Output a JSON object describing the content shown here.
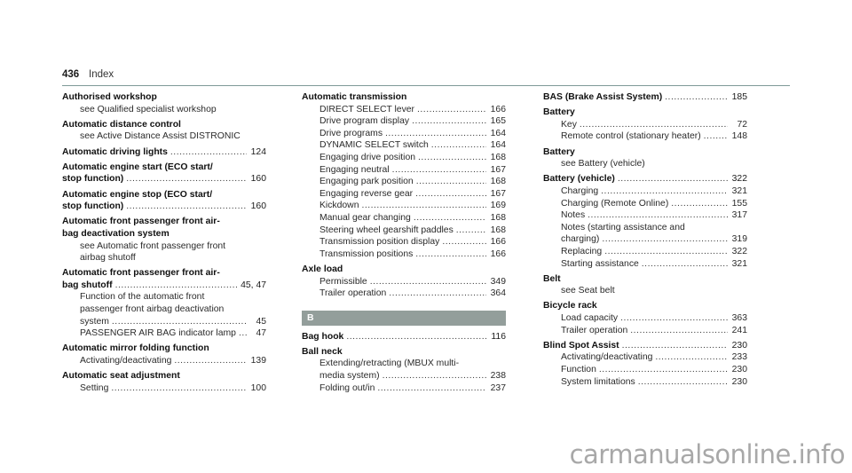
{
  "header": {
    "page_number": "436",
    "title": "Index",
    "rule_color": "#7f9a98"
  },
  "columns": [
    {
      "entries": [
        {
          "lines": [
            {
              "text": "Authorised workshop",
              "style": "bold",
              "page": ""
            },
            {
              "text": "see Qualified specialist workshop",
              "style": "sub-plain",
              "page": ""
            }
          ]
        },
        {
          "lines": [
            {
              "text": "Automatic distance control",
              "style": "bold",
              "page": ""
            },
            {
              "text": "see Active Distance Assist DISTRONIC",
              "style": "sub-plain",
              "page": ""
            }
          ]
        },
        {
          "lines": [
            {
              "text": "Automatic driving lights",
              "style": "bold-dots",
              "page": "124"
            }
          ]
        },
        {
          "lines": [
            {
              "text": "Automatic engine start (ECO start/",
              "style": "bold",
              "page": ""
            },
            {
              "text": "stop function)",
              "style": "bold-dots",
              "page": "160"
            }
          ]
        },
        {
          "lines": [
            {
              "text": "Automatic engine stop (ECO start/",
              "style": "bold",
              "page": ""
            },
            {
              "text": "stop function)",
              "style": "bold-dots",
              "page": "160"
            }
          ]
        },
        {
          "lines": [
            {
              "text": "Automatic front passenger front air-",
              "style": "bold",
              "page": ""
            },
            {
              "text": "bag deactivation system",
              "style": "bold",
              "page": ""
            },
            {
              "text": "see Automatic front passenger front",
              "style": "sub-plain",
              "page": ""
            },
            {
              "text": "airbag shutoff",
              "style": "sub-plain",
              "page": ""
            }
          ]
        },
        {
          "lines": [
            {
              "text": "Automatic front passenger front air-",
              "style": "bold",
              "page": ""
            },
            {
              "text": "bag shutoff",
              "style": "bold-dots",
              "page": "45, 47"
            },
            {
              "text": "Function of the automatic front",
              "style": "sub-plain",
              "page": ""
            },
            {
              "text": "passenger front airbag deactivation",
              "style": "sub-plain",
              "page": ""
            },
            {
              "text": "system",
              "style": "sub-dots",
              "page": "45"
            },
            {
              "text": "PASSENGER AIR BAG indicator lamp",
              "style": "sub-dots",
              "page": "47"
            }
          ]
        },
        {
          "lines": [
            {
              "text": "Automatic mirror folding function",
              "style": "bold",
              "page": ""
            },
            {
              "text": "Activating/deactivating",
              "style": "sub-dots",
              "page": "139"
            }
          ]
        },
        {
          "lines": [
            {
              "text": "Automatic seat adjustment",
              "style": "bold",
              "page": ""
            },
            {
              "text": "Setting",
              "style": "sub-dots",
              "page": "100"
            }
          ]
        }
      ]
    },
    {
      "entries": [
        {
          "lines": [
            {
              "text": "Automatic transmission",
              "style": "bold",
              "page": ""
            },
            {
              "text": "DIRECT SELECT lever",
              "style": "sub-dots",
              "page": "166"
            },
            {
              "text": "Drive program display",
              "style": "sub-dots",
              "page": "165"
            },
            {
              "text": "Drive programs",
              "style": "sub-dots",
              "page": "164"
            },
            {
              "text": "DYNAMIC SELECT switch",
              "style": "sub-dots",
              "page": "164"
            },
            {
              "text": "Engaging drive position",
              "style": "sub-dots",
              "page": "168"
            },
            {
              "text": "Engaging neutral",
              "style": "sub-dots",
              "page": "167"
            },
            {
              "text": "Engaging park position",
              "style": "sub-dots",
              "page": "168"
            },
            {
              "text": "Engaging reverse gear",
              "style": "sub-dots",
              "page": "167"
            },
            {
              "text": "Kickdown",
              "style": "sub-dots",
              "page": "169"
            },
            {
              "text": "Manual gear changing",
              "style": "sub-dots",
              "page": "168"
            },
            {
              "text": "Steering wheel gearshift paddles",
              "style": "sub-dots",
              "page": "168"
            },
            {
              "text": "Transmission position display",
              "style": "sub-dots",
              "page": "166"
            },
            {
              "text": "Transmission positions",
              "style": "sub-dots",
              "page": "166"
            }
          ]
        },
        {
          "lines": [
            {
              "text": "Axle load",
              "style": "bold",
              "page": ""
            },
            {
              "text": "Permissible",
              "style": "sub-dots",
              "page": "349"
            },
            {
              "text": "Trailer operation",
              "style": "sub-dots",
              "page": "364"
            }
          ]
        },
        {
          "section": "B"
        },
        {
          "lines": [
            {
              "text": "Bag hook",
              "style": "bold-dots",
              "page": "116"
            }
          ]
        },
        {
          "lines": [
            {
              "text": "Ball neck",
              "style": "bold",
              "page": ""
            },
            {
              "text": "Extending/retracting (MBUX multi-",
              "style": "sub-plain",
              "page": ""
            },
            {
              "text": "media system)",
              "style": "sub-dots",
              "page": "238"
            },
            {
              "text": "Folding out/in",
              "style": "sub-dots",
              "page": "237"
            }
          ]
        }
      ]
    },
    {
      "entries": [
        {
          "lines": [
            {
              "text": "BAS (Brake Assist System)",
              "style": "bold-dots",
              "page": "185"
            }
          ]
        },
        {
          "lines": [
            {
              "text": "Battery",
              "style": "bold",
              "page": ""
            },
            {
              "text": "Key",
              "style": "sub-dots",
              "page": "72"
            },
            {
              "text": "Remote control (stationary heater)",
              "style": "sub-dots",
              "page": "148"
            }
          ]
        },
        {
          "lines": [
            {
              "text": "Battery",
              "style": "bold",
              "page": ""
            },
            {
              "text": "see Battery (vehicle)",
              "style": "sub-plain",
              "page": ""
            }
          ]
        },
        {
          "lines": [
            {
              "text": "Battery (vehicle)",
              "style": "bold-dots",
              "page": "322"
            },
            {
              "text": "Charging",
              "style": "sub-dots",
              "page": "321"
            },
            {
              "text": "Charging (Remote Online)",
              "style": "sub-dots",
              "page": "155"
            },
            {
              "text": "Notes",
              "style": "sub-dots",
              "page": "317"
            },
            {
              "text": "Notes (starting assistance and",
              "style": "sub-plain",
              "page": ""
            },
            {
              "text": "charging)",
              "style": "sub-dots",
              "page": "319"
            },
            {
              "text": "Replacing",
              "style": "sub-dots",
              "page": "322"
            },
            {
              "text": "Starting assistance",
              "style": "sub-dots",
              "page": "321"
            }
          ]
        },
        {
          "lines": [
            {
              "text": "Belt",
              "style": "bold",
              "page": ""
            },
            {
              "text": "see Seat belt",
              "style": "sub-plain",
              "page": ""
            }
          ]
        },
        {
          "lines": [
            {
              "text": "Bicycle rack",
              "style": "bold",
              "page": ""
            },
            {
              "text": "Load capacity",
              "style": "sub-dots",
              "page": "363"
            },
            {
              "text": "Trailer operation",
              "style": "sub-dots",
              "page": "241"
            }
          ]
        },
        {
          "lines": [
            {
              "text": "Blind Spot Assist",
              "style": "bold-dots",
              "page": "230"
            },
            {
              "text": "Activating/deactivating",
              "style": "sub-dots",
              "page": "233"
            },
            {
              "text": "Function",
              "style": "sub-dots",
              "page": "230"
            },
            {
              "text": "System limitations",
              "style": "sub-dots",
              "page": "230"
            }
          ]
        }
      ]
    }
  ],
  "section_bar_color": "#939e9b",
  "watermark": "carmanualsonline.info"
}
